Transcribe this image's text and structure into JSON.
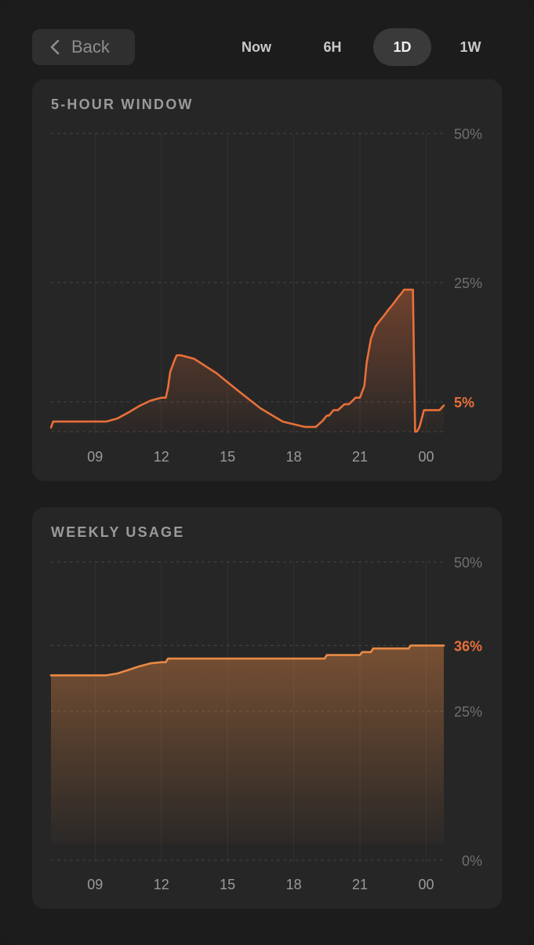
{
  "nav": {
    "back_label": "Back",
    "ranges": [
      {
        "label": "Now",
        "active": false
      },
      {
        "label": "6H",
        "active": false
      },
      {
        "label": "1D",
        "active": true
      },
      {
        "label": "1W",
        "active": false
      }
    ]
  },
  "colors": {
    "accent_line": "#e8703a",
    "accent_line_weekly": "#e88a45",
    "label_current": "#e8703a"
  },
  "chart_data": [
    {
      "type": "area",
      "title": "5-HOUR WINDOW",
      "x_tick_labels": [
        "09",
        "12",
        "15",
        "18",
        "21",
        "00"
      ],
      "y_tick_labels": [
        "50%",
        "25%"
      ],
      "ylim": [
        0,
        50
      ],
      "current_value_label": "5%",
      "current_value": 5,
      "grid": "dashed horizontal lines at 0, 5, 25, 50; faint vertical lines at x ticks",
      "x_hours": [
        7.0,
        7.1,
        7.2,
        9.5,
        10.0,
        10.5,
        11.0,
        11.5,
        12.0,
        12.2,
        12.3,
        12.4,
        12.6,
        12.7,
        12.9,
        13.5,
        14.5,
        15.5,
        16.5,
        17.5,
        18.5,
        19.0,
        19.3,
        19.5,
        19.6,
        19.8,
        20.0,
        20.3,
        20.5,
        20.8,
        21.0,
        21.2,
        21.3,
        21.5,
        21.7,
        21.9,
        22.1,
        22.3,
        22.5,
        22.7,
        22.9,
        23.0,
        23.2,
        23.4,
        23.5,
        23.55,
        23.6,
        23.7,
        23.9,
        24.2,
        24.6,
        24.8
      ],
      "values": [
        0.7,
        1.7,
        1.7,
        1.7,
        2.2,
        3.2,
        4.3,
        5.2,
        5.7,
        5.7,
        7.3,
        10.0,
        12.0,
        12.8,
        12.8,
        12.2,
        9.8,
        6.8,
        3.9,
        1.7,
        0.8,
        0.8,
        1.8,
        2.7,
        2.7,
        3.6,
        3.6,
        4.6,
        4.6,
        5.7,
        5.7,
        7.7,
        11.5,
        15.6,
        17.6,
        18.6,
        19.5,
        20.5,
        21.4,
        22.4,
        23.3,
        23.8,
        23.8,
        23.8,
        0.0,
        0.0,
        0.1,
        0.8,
        3.6,
        3.6,
        3.6,
        4.4
      ]
    },
    {
      "type": "area",
      "title": "WEEKLY USAGE",
      "x_tick_labels": [
        "09",
        "12",
        "15",
        "18",
        "21",
        "00"
      ],
      "y_tick_labels": [
        "50%",
        "25%",
        "0%"
      ],
      "ylim": [
        0,
        50
      ],
      "current_value_label": "36%",
      "current_value": 36,
      "grid": "dashed horizontal lines at 0, 25, 36, 50; faint vertical lines at x ticks",
      "x_hours": [
        7.0,
        9.5,
        10.0,
        10.5,
        11.0,
        11.5,
        12.0,
        12.2,
        12.3,
        12.4,
        14.0,
        16.0,
        18.0,
        19.4,
        19.5,
        21.0,
        21.1,
        21.2,
        21.5,
        21.6,
        22.0,
        23.2,
        23.3,
        23.5,
        24.0,
        24.8
      ],
      "values": [
        31.0,
        31.0,
        31.3,
        31.9,
        32.5,
        33.0,
        33.2,
        33.2,
        33.8,
        33.8,
        33.8,
        33.8,
        33.8,
        33.8,
        34.4,
        34.4,
        34.9,
        34.9,
        34.9,
        35.5,
        35.5,
        35.5,
        36.0,
        36.0,
        36.0,
        36.0
      ]
    }
  ]
}
